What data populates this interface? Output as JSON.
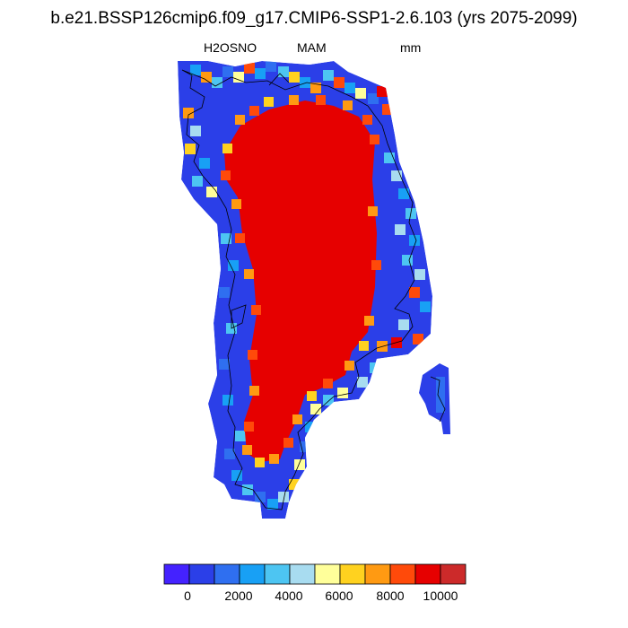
{
  "title": "b.e21.BSSP126cmip6.f09_g17.CMIP6-SSP1-2.6.103 (yrs 2075-2099)",
  "variable": "H2OSNO",
  "season": "MAM",
  "units": "mm",
  "colorbar": {
    "colors": [
      "#4422ff",
      "#2b3fe8",
      "#2f6ff0",
      "#18a0f5",
      "#4dc5f2",
      "#a8dcf0",
      "#ffff9a",
      "#ffd21f",
      "#ff9a12",
      "#ff4a0a",
      "#e60000",
      "#cc2a2a"
    ],
    "tick_labels": [
      "0",
      "2000",
      "4000",
      "6000",
      "8000",
      "10000"
    ],
    "tick_values": [
      0,
      2000,
      4000,
      6000,
      8000,
      10000
    ]
  },
  "map_data": {
    "region": "Greenland",
    "interior_value_mm": 10000
  }
}
